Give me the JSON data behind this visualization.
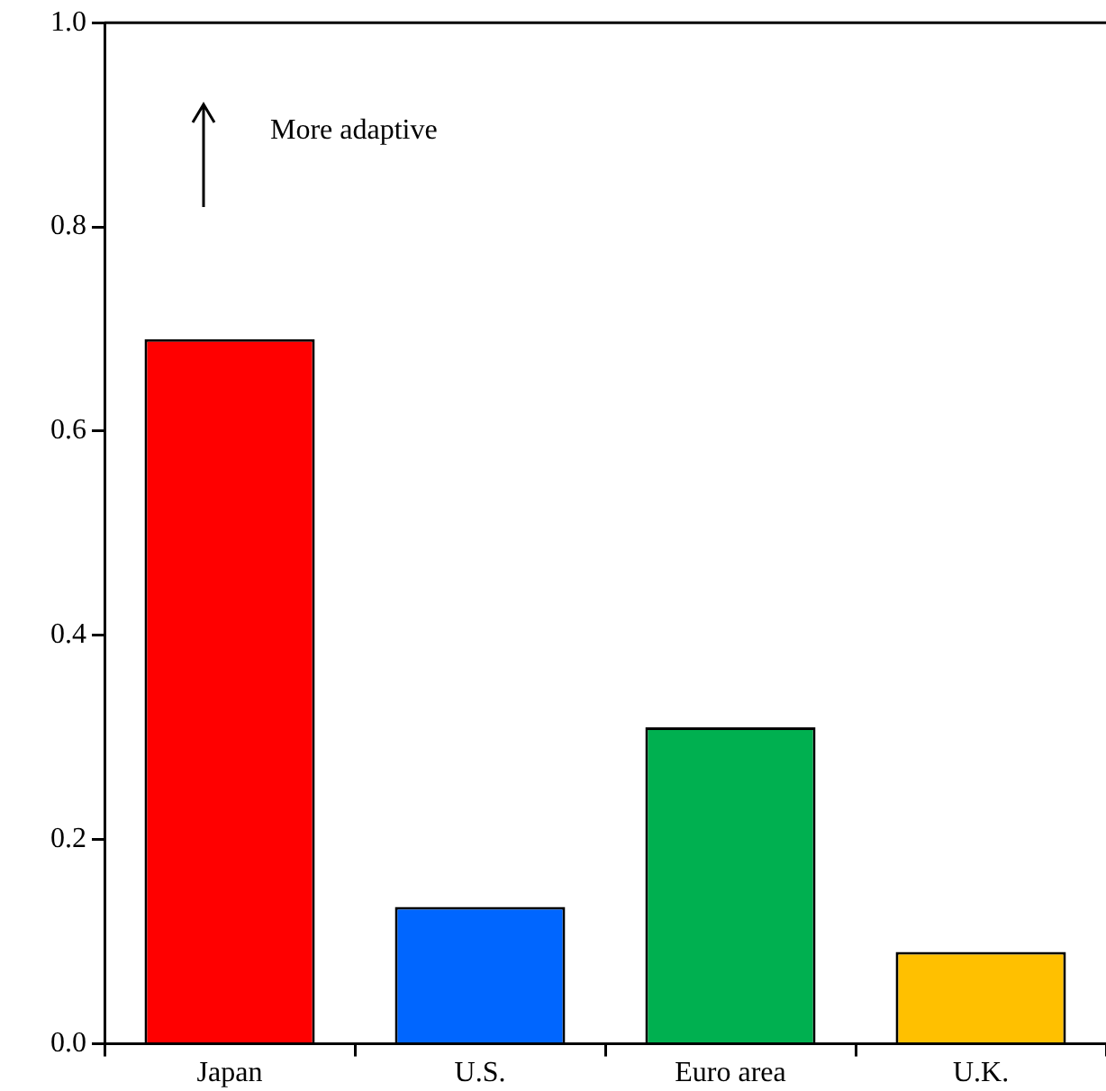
{
  "chart_data": {
    "type": "bar",
    "categories": [
      "Japan",
      "U.S.",
      "Euro area",
      "U.K."
    ],
    "values": [
      0.69,
      0.134,
      0.31,
      0.09
    ],
    "colors": [
      "#ff0000",
      "#0066ff",
      "#00b050",
      "#ffc000"
    ],
    "ylim": [
      0,
      1
    ],
    "yticks": [
      {
        "value": 0,
        "label": "0.0"
      },
      0.2,
      0.4,
      0.6,
      0.8,
      {
        "value": 1,
        "label": "1.0"
      }
    ],
    "annotations": [
      "More adaptive"
    ]
  }
}
